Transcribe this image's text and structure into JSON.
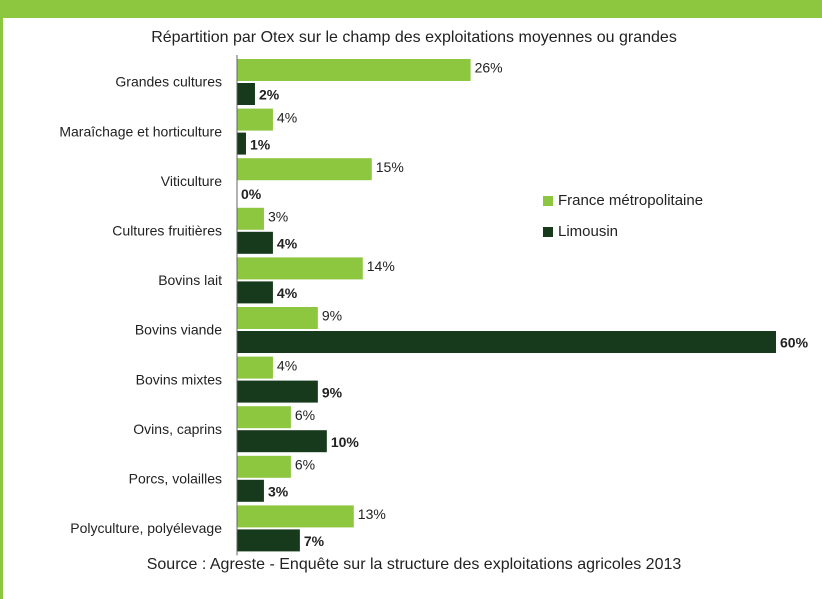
{
  "chart_data": {
    "type": "hbar",
    "subtitle": "Répartition par Otex sur le champ des exploitations moyennes ou grandes",
    "source": "Source : Agreste - Enquête sur la structure des exploitations agricoles 2013",
    "categories": [
      "Grandes cultures",
      "Maraîchage et horticulture",
      "Viticulture",
      "Cultures fruitières",
      "Bovins lait",
      "Bovins viande",
      "Bovins mixtes",
      "Ovins, caprins",
      "Porcs, volailles",
      "Polyculture, polyélevage"
    ],
    "series": [
      {
        "name": "France métropolitaine",
        "color": "#8dc63f",
        "values": [
          26,
          4,
          15,
          3,
          14,
          9,
          4,
          6,
          6,
          13
        ],
        "value_labels": [
          "26%",
          "4%",
          "15%",
          "3%",
          "14%",
          "9%",
          "4%",
          "6%",
          "6%",
          "13%"
        ]
      },
      {
        "name": "Limousin",
        "color": "#173a1c",
        "values": [
          2,
          1,
          0,
          4,
          4,
          60,
          9,
          10,
          3,
          7
        ],
        "value_labels": [
          "2%",
          "1%",
          "0%",
          "4%",
          "4%",
          "60%",
          "9%",
          "10%",
          "3%",
          "7%"
        ]
      }
    ],
    "legend": "right"
  }
}
